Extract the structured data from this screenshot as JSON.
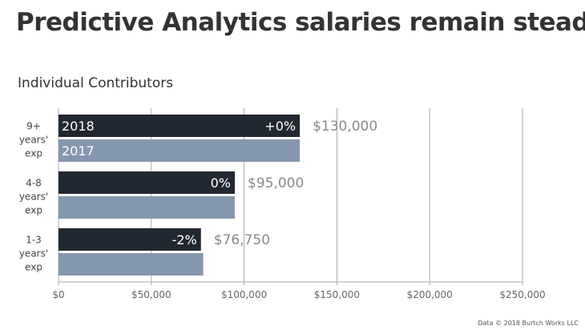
{
  "title": "Predictive Analytics salaries remain steady",
  "subtitle": "Individual Contributors",
  "footer": "Data © 2018 Burtch Works LLC",
  "colors": {
    "series_2018": "#222831",
    "series_2017": "#8597AF",
    "gridline": "#aaaaaa",
    "axis_text": "#666666",
    "value_label": "#8a8a8a",
    "bar_text": "#ffffff"
  },
  "chart_data": {
    "type": "bar",
    "orientation": "horizontal",
    "categories": [
      [
        "9+",
        "years'",
        "exp"
      ],
      [
        "4-8",
        "years'",
        "exp"
      ],
      [
        "1-3",
        "years'",
        "exp"
      ]
    ],
    "series": [
      {
        "name": "2018",
        "values": [
          130000,
          95000,
          76750
        ],
        "change_labels": [
          "+0%",
          "0%",
          "-2%"
        ]
      },
      {
        "name": "2017",
        "values": [
          130000,
          95000,
          78000
        ]
      }
    ],
    "value_labels": [
      "$130,000",
      "$95,000",
      "$76,750"
    ],
    "xlim": [
      0,
      250000
    ],
    "xticks": [
      0,
      50000,
      100000,
      150000,
      200000,
      250000
    ],
    "xtick_labels": [
      "$0",
      "$50,000",
      "$100,000",
      "$150,000",
      "$200,000",
      "$250,000"
    ],
    "grid": true,
    "legend": "inline labels on first category bars"
  }
}
